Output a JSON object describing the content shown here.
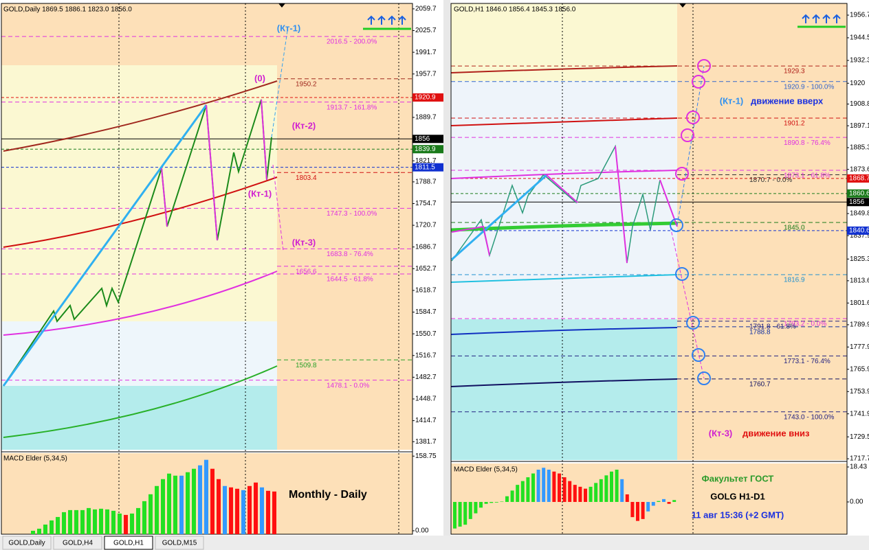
{
  "left_chart": {
    "header": "GOLD,Daily  1869.5 1886.1 1823.0 1856.0",
    "ylim": [
      1369.1,
      2068.2
    ],
    "yticks": [
      2059.7,
      2025.7,
      1991.7,
      1957.7,
      1889.7,
      1821.7,
      1788.7,
      1754.7,
      1720.7,
      1686.7,
      1652.7,
      1618.7,
      1584.7,
      1550.7,
      1516.7,
      1482.7,
      1448.7,
      1414.7,
      1381.7
    ],
    "price_boxes": [
      {
        "value": 1920.9,
        "color": "#e01010"
      },
      {
        "value": 1856.0,
        "color": "#000000"
      },
      {
        "value": 1839.9,
        "color": "#1a7a1a"
      },
      {
        "value": 1811.5,
        "color": "#1030d0"
      }
    ],
    "levels": [
      {
        "value": 2016.5,
        "label": "2016.5 - 200.0%",
        "color": "#e030e0",
        "full": true
      },
      {
        "value": 1950.2,
        "label": "1950.2",
        "color": "#a0281e",
        "full": false
      },
      {
        "value": 1913.7,
        "label": "1913.7 - 161.8%",
        "color": "#e030e0",
        "full": true
      },
      {
        "value": 1803.4,
        "label": "1803.4",
        "color": "#d01010",
        "full": false
      },
      {
        "value": 1747.3,
        "label": "1747.3 - 100.0%",
        "color": "#e030e0",
        "full": true
      },
      {
        "value": 1683.8,
        "label": "1683.8 - 76.4%",
        "color": "#e030e0",
        "full": true
      },
      {
        "value": 1656.6,
        "label": "1656.6",
        "color": "#e030e0",
        "full": false
      },
      {
        "value": 1644.5,
        "label": "1644.5 - 61.8%",
        "color": "#e030e0",
        "full": true
      },
      {
        "value": 1509.8,
        "label": "1509.8",
        "color": "#28a028",
        "full": false
      },
      {
        "value": 1478.1,
        "label": "1478.1 - 0.0%",
        "color": "#e030e0",
        "full": true
      }
    ],
    "annotations": {
      "kt1_top": "(Кт-1)",
      "zero": "(0)",
      "kt2": "(Кт-2)",
      "kt1": "(Кт-1)",
      "kt3": "(Кт-3)",
      "caption": "Monthly - Daily"
    },
    "macd": {
      "label": "MACD Elder (5,34,5)",
      "ylim": [
        0,
        160.5
      ],
      "yticks": [
        158.75,
        {
          "value": 0,
          "label": "0.00"
        }
      ],
      "values": [
        7,
        11.2,
        19.6,
        28,
        35,
        44.8,
        49,
        49,
        49,
        53.2,
        50.4,
        51.8,
        50.4,
        47.6,
        42,
        39.2,
        42,
        53.2,
        67.2,
        81.2,
        98,
        112,
        123.2,
        119,
        119,
        126,
        133,
        140,
        151.2,
        133,
        112,
        98,
        95.2,
        92.4,
        89.6,
        98,
        105,
        95.2,
        88.2,
        86.8
      ],
      "colors": [
        "#22e022",
        "#22e022",
        "#22e022",
        "#22e022",
        "#22e022",
        "#22e022",
        "#22e022",
        "#22e022",
        "#22e022",
        "#22e022",
        "#22e022",
        "#22e022",
        "#22e022",
        "#22e022",
        "#22e022",
        "#ff1010",
        "#22e022",
        "#22e022",
        "#22e022",
        "#22e022",
        "#22e022",
        "#22e022",
        "#22e022",
        "#22e022",
        "#3399ff",
        "#22e022",
        "#22e022",
        "#3399ff",
        "#3399ff",
        "#ff1010",
        "#ff1010",
        "#3399ff",
        "#ff1010",
        "#ff1010",
        "#3399ff",
        "#ff1010",
        "#ff1010",
        "#3399ff",
        "#ff1010",
        "#ff1010"
      ]
    }
  },
  "right_chart": {
    "header": "GOLD,H1  1846.0 1856.4 1845.3 1856.0",
    "ylim": [
      1717.0,
      1963.0
    ],
    "yticks": [
      1956.7,
      1944.5,
      1932.3,
      1920.0,
      1908.8,
      1897.1,
      1885.3,
      1873.6,
      1849.8,
      1837.9,
      1825.3,
      1813.6,
      1801.6,
      1789.9,
      1777.9,
      1765.9,
      1753.9,
      1741.9,
      1729.5,
      1717.7
    ],
    "price_boxes": [
      {
        "value": 1868.7,
        "color": "#e01010"
      },
      {
        "value": 1860.6,
        "color": "#1a7a1a"
      },
      {
        "value": 1856.0,
        "color": "#000000"
      },
      {
        "value": 1840.6,
        "color": "#1030d0"
      }
    ],
    "levels": [
      {
        "value": 1929.3,
        "label": "1929.3",
        "color": "#b0201a",
        "full": true
      },
      {
        "value": 1920.9,
        "label": "1920.9 - 100.0%",
        "color": "#3366cc",
        "full": true
      },
      {
        "value": 1901.2,
        "label": "1901.2",
        "color": "#d01010",
        "full": true
      },
      {
        "value": 1890.8,
        "label": "1890.8 - 76.4%",
        "color": "#e030e0",
        "full": true
      },
      {
        "value": 1873.1,
        "label": "1873.1 - 61.8%",
        "color": "#e030e0",
        "full": true
      },
      {
        "value": 1870.7,
        "label": "1870.7 - 0.0%",
        "color": "#333333",
        "full": false
      },
      {
        "value": 1845.0,
        "label": "1845.0",
        "color": "#1a7a1a",
        "full": true
      },
      {
        "value": 1816.9,
        "label": "1816.9",
        "color": "#1e90d0",
        "full": true
      },
      {
        "value": 1793.2,
        "label": "1793.2 - 0.0%",
        "color": "#e030e0",
        "full": true
      },
      {
        "value": 1791.8,
        "label": "1791.8 - 61.8%",
        "color": "#202080",
        "full": false
      },
      {
        "value": 1788.8,
        "label": "1788.8",
        "color": "#1030a0",
        "full": false
      },
      {
        "value": 1773.1,
        "label": "1773.1 - 76.4%",
        "color": "#202080",
        "full": true
      },
      {
        "value": 1760.7,
        "label": "1760.7",
        "color": "#101060",
        "full": false
      },
      {
        "value": 1743.0,
        "label": "1743.0 - 100.0%",
        "color": "#202080",
        "full": true
      }
    ],
    "annotations": {
      "kt1": "(Кт-1)",
      "up": "движение вверх",
      "kt3": "(Кт-3)",
      "down": "движение вниз",
      "faculty": "Факультет ГОСТ",
      "pair": "GOLG H1-D1",
      "time": "11 авг 15:36 (+2 GMT)"
    },
    "macd": {
      "label": "MACD Elder (5,34,5)",
      "ylim": [
        -17.0,
        19.9
      ],
      "yticks": [
        18.43,
        {
          "value": 0,
          "label": "0.00"
        }
      ],
      "values": [
        -14,
        -13,
        -12,
        -9,
        -6,
        -3,
        -1,
        -0.5,
        -0.3,
        0.2,
        3,
        6,
        9,
        11,
        13,
        15,
        17,
        18,
        17,
        16,
        15,
        13,
        11,
        9,
        8,
        7,
        8,
        10,
        12,
        14,
        16,
        17,
        12,
        4,
        -8,
        -10,
        -9,
        -5,
        -2,
        0.5,
        1.5,
        -1,
        1
      ],
      "colors": [
        "#22e022",
        "#22e022",
        "#22e022",
        "#22e022",
        "#22e022",
        "#22e022",
        "#22e022",
        "#22e022",
        "#22e022",
        "#22e022",
        "#22e022",
        "#22e022",
        "#22e022",
        "#22e022",
        "#22e022",
        "#22e022",
        "#3399ff",
        "#3399ff",
        "#3399ff",
        "#ff1010",
        "#ff1010",
        "#ff1010",
        "#ff1010",
        "#ff1010",
        "#ff1010",
        "#ff1010",
        "#22e022",
        "#22e022",
        "#22e022",
        "#22e022",
        "#22e022",
        "#22e022",
        "#3399ff",
        "#ff1010",
        "#ff1010",
        "#ff1010",
        "#ff1010",
        "#3399ff",
        "#3399ff",
        "#22e022",
        "#3399ff",
        "#ff1010",
        "#22e022"
      ]
    }
  },
  "tabs": [
    "GOLD,Daily",
    "GOLD,H4",
    "GOLD,H1",
    "GOLD,M15"
  ]
}
